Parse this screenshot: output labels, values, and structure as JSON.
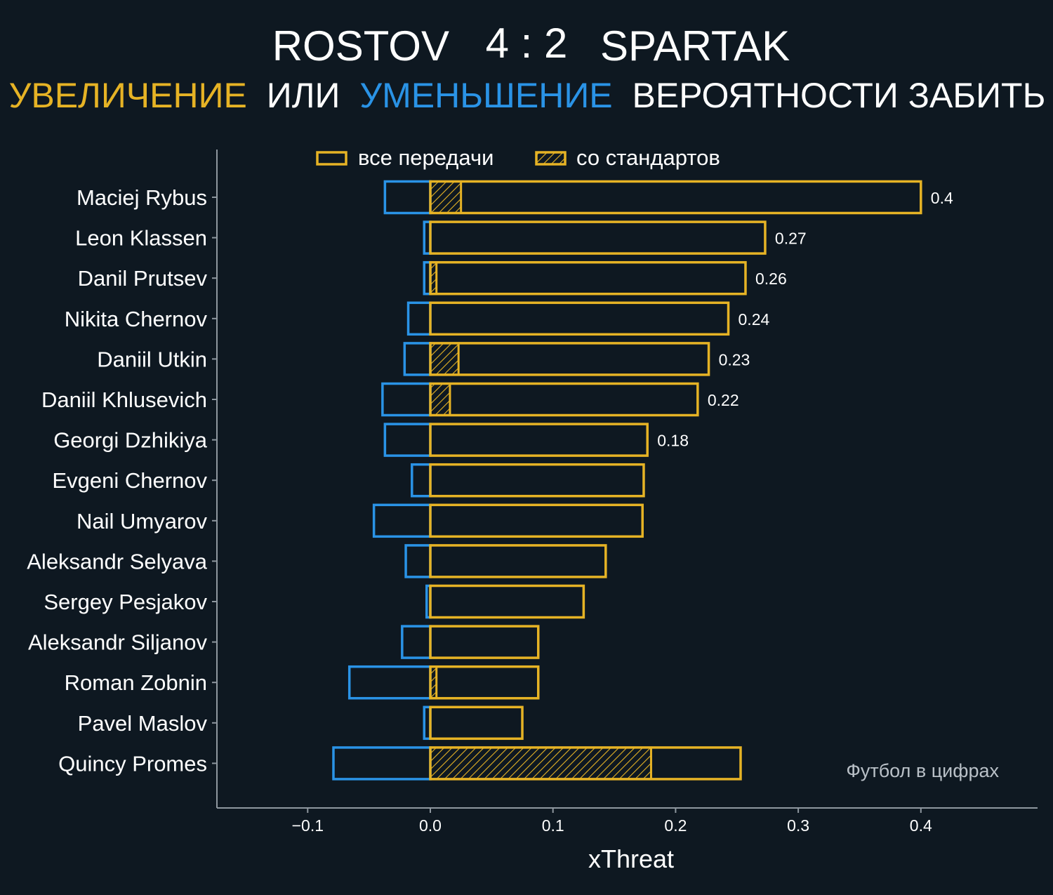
{
  "colors": {
    "background": "#0e1821",
    "increase": "#e6b325",
    "decrease": "#2a93e6",
    "text": "#ffffff",
    "axis": "#8e979f",
    "watermark": "#b9c0c7"
  },
  "header": {
    "home_team": "ROSTOV",
    "score": "4 : 2",
    "away_team": "SPARTAK",
    "subtitle_increase": "УВЕЛИЧЕНИЕ",
    "subtitle_or": "ИЛИ",
    "subtitle_decrease": "УМЕНЬШЕНИЕ",
    "subtitle_rest": "ВЕРОЯТНОСТИ ЗАБИТЬ"
  },
  "watermark": "Футбол в цифрах",
  "chart_data": {
    "type": "bar",
    "orientation": "horizontal",
    "title": "ROSTOV 4 : 2 SPARTAK",
    "subtitle": "УВЕЛИЧЕНИЕ ИЛИ УМЕНЬШЕНИЕ ВЕРОЯТНОСТИ ЗАБИТЬ",
    "xlabel": "xThreat",
    "ylabel": "",
    "xlim": [
      -0.175,
      0.475
    ],
    "xticks": [
      -0.1,
      0.0,
      0.1,
      0.2,
      0.3,
      0.4
    ],
    "xtick_labels": [
      "−0.1",
      "0.0",
      "0.1",
      "0.2",
      "0.3",
      "0.4"
    ],
    "grid": false,
    "legend": {
      "position": "top-center",
      "entries": [
        {
          "label": "все передачи",
          "style": "outline"
        },
        {
          "label": "со стандартов",
          "style": "hatched"
        }
      ]
    },
    "categories": [
      "Maciej Rybus",
      "Leon Klassen",
      "Danil Prutsev",
      "Nikita Chernov",
      "Daniil Utkin",
      "Daniil Khlusevich",
      "Georgi Dzhikiya",
      "Evgeni Chernov",
      "Nail Umyarov",
      "Aleksandr Selyava",
      "Sergey Pesjakov",
      "Aleksandr Siljanov",
      "Roman Zobnin",
      "Pavel Maslov",
      "Quincy Promes"
    ],
    "series": [
      {
        "name": "positive (все передачи)",
        "values": [
          0.4,
          0.273,
          0.257,
          0.243,
          0.227,
          0.218,
          0.177,
          0.174,
          0.173,
          0.143,
          0.125,
          0.088,
          0.088,
          0.075,
          0.253
        ]
      },
      {
        "name": "negative (все передачи)",
        "values": [
          -0.037,
          -0.005,
          -0.005,
          -0.018,
          -0.021,
          -0.039,
          -0.037,
          -0.015,
          -0.046,
          -0.02,
          -0.003,
          -0.023,
          -0.066,
          -0.005,
          -0.079
        ]
      },
      {
        "name": "со стандартов",
        "values": [
          0.025,
          0,
          0.005,
          0,
          0.023,
          0.016,
          0,
          0,
          0,
          0,
          0,
          0,
          0.005,
          0,
          0.18
        ]
      }
    ],
    "value_labels": [
      "0.4",
      "0.27",
      "0.26",
      "0.24",
      "0.23",
      "0.22",
      "0.18",
      "",
      "",
      "",
      "",
      "",
      "",
      "",
      ""
    ]
  }
}
